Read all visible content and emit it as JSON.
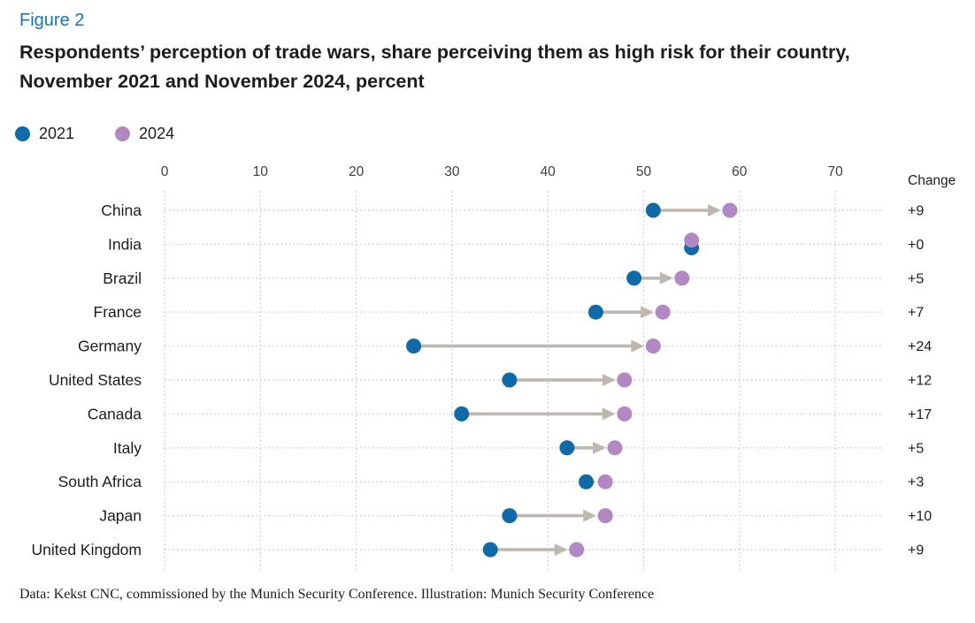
{
  "figure_label": "Figure 2",
  "title_lines": [
    "Respondents’ perception of trade wars, share perceiving them as high risk for their country,",
    "November 2021 and November 2024, percent"
  ],
  "legend": {
    "items": [
      {
        "label": "2021",
        "color": "#0e6aa8"
      },
      {
        "label": "2024",
        "color": "#b287c4"
      }
    ]
  },
  "change_header": "Change",
  "source_note": "Data: Kekst CNC, commissioned by the Munich Security Conference. Illustration: Munich Security Conference",
  "colors": {
    "figure_label_blue": "#1377bd",
    "text": "#1d1d1b",
    "axis_text": "#3f3f3e",
    "arrow": "#bfb7ae",
    "grid": "#c9c9c9",
    "series_2021": "#0e6aa8",
    "series_2024": "#b287c4"
  },
  "chart_data": {
    "type": "dumbbell",
    "title": "Respondents’ perception of trade wars, share perceiving them as high risk for their country, November 2021 and November 2024, percent",
    "categories": [
      "China",
      "India",
      "Brazil",
      "France",
      "Germany",
      "United States",
      "Canada",
      "Italy",
      "South Africa",
      "Japan",
      "United Kingdom"
    ],
    "series": [
      {
        "name": "2021",
        "values": [
          51,
          55,
          49,
          45,
          26,
          36,
          31,
          42,
          44,
          36,
          34
        ]
      },
      {
        "name": "2024",
        "values": [
          59,
          55,
          54,
          52,
          51,
          48,
          48,
          47,
          46,
          46,
          43
        ]
      }
    ],
    "changes": [
      "+9",
      "+0",
      "+5",
      "+7",
      "+24",
      "+12",
      "+17",
      "+5",
      "+3",
      "+10",
      "+9"
    ],
    "change_column_header": "Change",
    "xlabel": "",
    "ylabel": "",
    "x_ticks": [
      0,
      10,
      20,
      30,
      40,
      50,
      60,
      70
    ],
    "xlim": [
      0,
      75
    ],
    "grid": "dotted vertical gridlines + dotted row leader lines",
    "legend_position": "top-left",
    "units": "percent"
  }
}
